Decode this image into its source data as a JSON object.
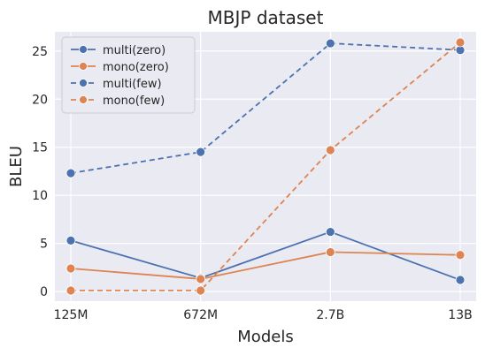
{
  "chart_data": {
    "type": "line",
    "title": "MBJP dataset",
    "xlabel": "Models",
    "ylabel": "BLEU",
    "categories": [
      "125M",
      "672M",
      "2.7B",
      "13B"
    ],
    "ylim": [
      -1,
      27
    ],
    "yticks": [
      0,
      5,
      10,
      15,
      20,
      25
    ],
    "grid": true,
    "legend_position": "top-left",
    "series": [
      {
        "name": "multi(zero)",
        "values": [
          5.3,
          1.4,
          6.2,
          1.2
        ],
        "color": "#4c72b0",
        "dash": "solid"
      },
      {
        "name": "mono(zero)",
        "values": [
          2.4,
          1.3,
          4.1,
          3.8
        ],
        "color": "#dd8452",
        "dash": "solid"
      },
      {
        "name": "multi(few)",
        "values": [
          12.3,
          14.5,
          25.8,
          25.1
        ],
        "color": "#4c72b0",
        "dash": "dashed"
      },
      {
        "name": "mono(few)",
        "values": [
          0.1,
          0.1,
          14.7,
          25.9
        ],
        "color": "#dd8452",
        "dash": "dashed"
      }
    ]
  },
  "colors": {
    "plot_background": "#eaeaf2",
    "grid": "#ffffff"
  }
}
